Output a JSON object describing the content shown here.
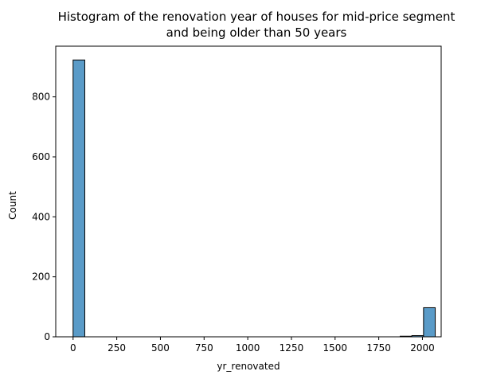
{
  "chart_data": {
    "type": "bar",
    "title_lines": [
      "Histogram of the renovation year of houses for mid-price segment",
      "and being older than 50 years"
    ],
    "xlabel": "yr_renovated",
    "ylabel": "Count",
    "xlim": [
      -99.3,
      2107.3
    ],
    "ylim": [
      0,
      969
    ],
    "xticks": [
      0,
      250,
      500,
      750,
      1000,
      1250,
      1500,
      1750,
      2000
    ],
    "yticks": [
      0,
      200,
      400,
      600,
      800
    ],
    "bar_color": "#5a9bc8",
    "edge_color": "#000000",
    "bins": [
      {
        "x0": 0,
        "x1": 66.9,
        "count": 923
      },
      {
        "x0": 1872.6,
        "x1": 1939.5,
        "count": 2
      },
      {
        "x0": 1939.5,
        "x1": 2006.4,
        "count": 4
      },
      {
        "x0": 2006.4,
        "x1": 2073.3,
        "count": 97
      }
    ]
  }
}
